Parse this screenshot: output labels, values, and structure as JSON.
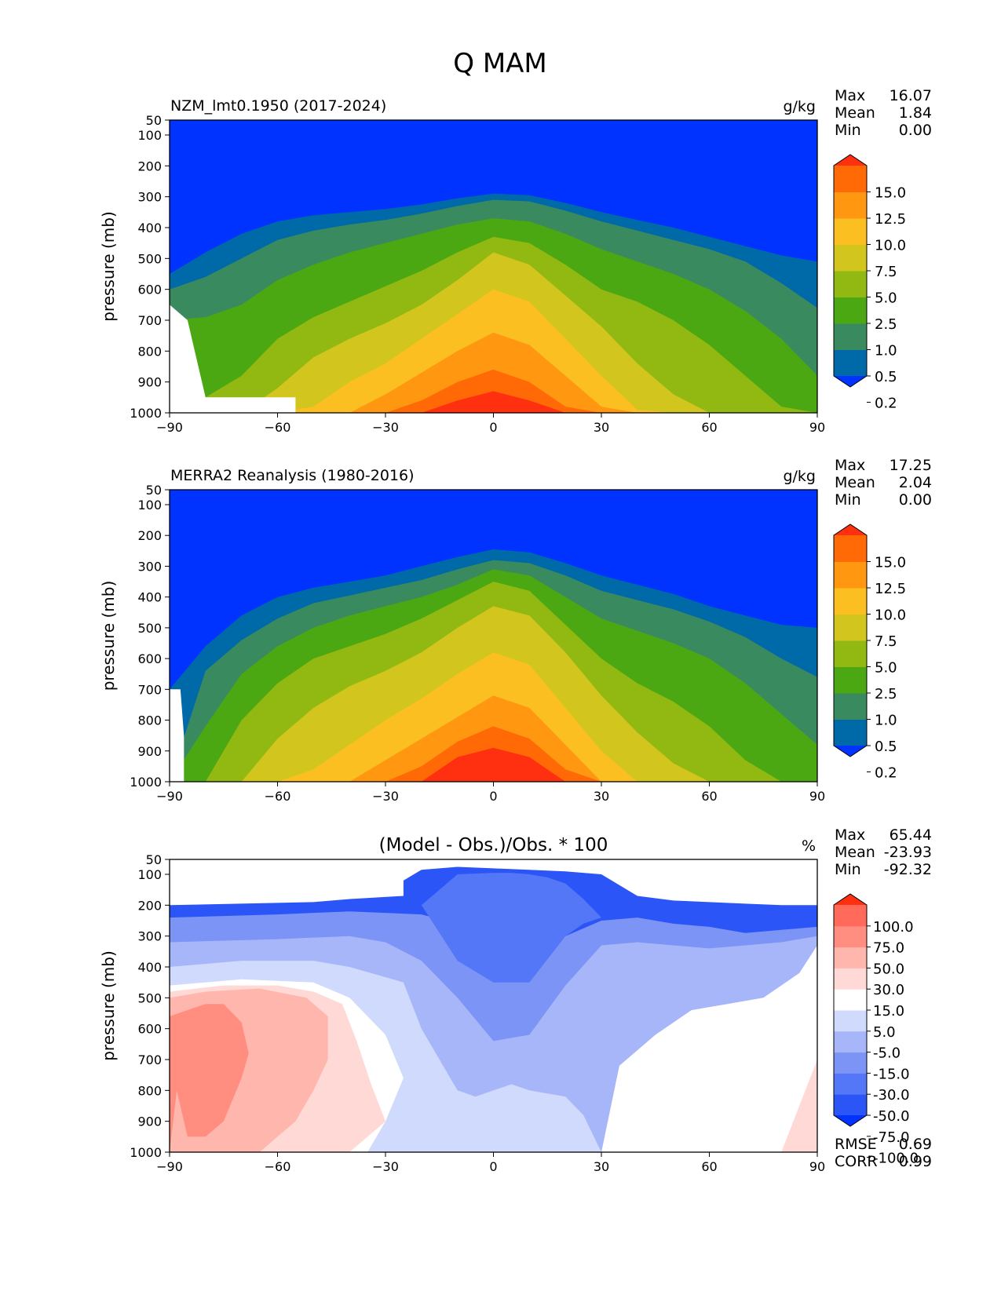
{
  "title": "Q MAM",
  "colors": {
    "q_levels": [
      "#0033ff",
      "#006aa8",
      "#3a8a60",
      "#4ca812",
      "#92b812",
      "#d2c61e",
      "#fbbf21",
      "#ff9810",
      "#ff6a06",
      "#ff3010"
    ],
    "diff_levels": [
      "#0033ff",
      "#2b55f7",
      "#5477f7",
      "#7b94f5",
      "#a7b6f8",
      "#d0dafc",
      "#ffffff",
      "#ffd9d6",
      "#ffb6ad",
      "#ff8e80",
      "#ff6a5a",
      "#ff3010"
    ]
  },
  "chart_data": [
    {
      "type": "contour",
      "title": "NZM_lmt0.1950 (2017-2024)",
      "units": "g/kg",
      "ylabel": "pressure (mb)",
      "xlim": [
        -90,
        90
      ],
      "ylim": [
        1000,
        50
      ],
      "xticks": [
        "−90",
        "−60",
        "−30",
        "0",
        "30",
        "60",
        "90"
      ],
      "yticks": [
        "50",
        "100",
        "200",
        "300",
        "400",
        "500",
        "600",
        "700",
        "800",
        "900",
        "1000"
      ],
      "stats": {
        "labels": [
          "Max",
          "Mean",
          "Min"
        ],
        "values": [
          "16.07",
          "1.84",
          "0.00"
        ]
      },
      "colorbar_labels": [
        "15.0",
        "12.5",
        "10.0",
        "7.5",
        "5.0",
        "2.5",
        "1.0",
        "0.5",
        "0.2"
      ],
      "field": "model",
      "contours": {
        "lat": [
          -90,
          -80,
          -70,
          -60,
          -50,
          -40,
          -30,
          -20,
          -10,
          0,
          10,
          20,
          30,
          40,
          50,
          60,
          70,
          80,
          90
        ],
        "levels_lowest_contour": [
          [
            550,
            480,
            420,
            380,
            360,
            350,
            340,
            325,
            305,
            290,
            295,
            320,
            350,
            375,
            400,
            430,
            460,
            490,
            510
          ],
          [
            600,
            560,
            500,
            440,
            410,
            390,
            375,
            355,
            330,
            310,
            315,
            345,
            380,
            410,
            440,
            470,
            510,
            580,
            660
          ],
          [
            700,
            690,
            650,
            570,
            520,
            480,
            450,
            420,
            390,
            370,
            380,
            420,
            470,
            510,
            550,
            600,
            670,
            760,
            880
          ],
          [
            1000,
            950,
            880,
            760,
            690,
            640,
            590,
            540,
            480,
            430,
            450,
            520,
            600,
            640,
            700,
            780,
            880,
            980,
            1000
          ],
          [
            1000,
            1000,
            1000,
            920,
            820,
            760,
            710,
            650,
            570,
            480,
            520,
            620,
            720,
            840,
            940,
            1000,
            1000,
            1000,
            1000
          ],
          [
            1000,
            1000,
            1000,
            1000,
            980,
            900,
            840,
            760,
            680,
            600,
            640,
            760,
            880,
            990,
            1000,
            1000,
            1000,
            1000,
            1000
          ],
          [
            1000,
            1000,
            1000,
            1000,
            1000,
            1000,
            940,
            870,
            800,
            740,
            780,
            880,
            980,
            1000,
            1000,
            1000,
            1000,
            1000,
            1000
          ],
          [
            1000,
            1000,
            1000,
            1000,
            1000,
            1000,
            1000,
            960,
            900,
            860,
            900,
            980,
            1000,
            1000,
            1000,
            1000,
            1000,
            1000,
            1000
          ],
          [
            1000,
            1000,
            1000,
            1000,
            1000,
            1000,
            1000,
            1000,
            960,
            930,
            960,
            1000,
            1000,
            1000,
            1000,
            1000,
            1000,
            1000,
            1000
          ]
        ],
        "missing": {
          "lat": [
            -90,
            -85,
            -80,
            -70,
            -55,
            -55
          ],
          "p": [
            650,
            700,
            950,
            950,
            950,
            1000
          ]
        }
      }
    },
    {
      "type": "contour",
      "title": "MERRA2 Reanalysis (1980-2016)",
      "units": "g/kg",
      "ylabel": "pressure (mb)",
      "xlim": [
        -90,
        90
      ],
      "ylim": [
        1000,
        50
      ],
      "xticks": [
        "−90",
        "−60",
        "−30",
        "0",
        "30",
        "60",
        "90"
      ],
      "yticks": [
        "50",
        "100",
        "200",
        "300",
        "400",
        "500",
        "600",
        "700",
        "800",
        "900",
        "1000"
      ],
      "stats": {
        "labels": [
          "Max",
          "Mean",
          "Min"
        ],
        "values": [
          "17.25",
          "2.04",
          "0.00"
        ]
      },
      "colorbar_labels": [
        "15.0",
        "12.5",
        "10.0",
        "7.5",
        "5.0",
        "2.5",
        "1.0",
        "0.5",
        "0.2"
      ],
      "field": "obs",
      "contours": {
        "lat": [
          -90,
          -80,
          -70,
          -60,
          -50,
          -40,
          -30,
          -20,
          -10,
          0,
          10,
          20,
          30,
          40,
          50,
          60,
          70,
          80,
          90
        ],
        "levels_lowest_contour": [
          [
            700,
            560,
            460,
            400,
            370,
            350,
            330,
            300,
            270,
            245,
            255,
            290,
            330,
            360,
            390,
            430,
            460,
            490,
            500
          ],
          [
            1000,
            640,
            540,
            470,
            420,
            395,
            370,
            345,
            310,
            280,
            290,
            330,
            380,
            410,
            440,
            480,
            530,
            600,
            660
          ],
          [
            1000,
            820,
            650,
            560,
            500,
            460,
            430,
            400,
            360,
            310,
            330,
            400,
            470,
            510,
            550,
            600,
            680,
            780,
            880
          ],
          [
            1000,
            1000,
            800,
            680,
            600,
            560,
            520,
            470,
            410,
            350,
            380,
            490,
            600,
            680,
            740,
            820,
            930,
            1000,
            1000
          ],
          [
            1000,
            1000,
            1000,
            860,
            760,
            690,
            640,
            580,
            500,
            430,
            460,
            580,
            720,
            840,
            940,
            1000,
            1000,
            1000,
            1000
          ],
          [
            1000,
            1000,
            1000,
            1000,
            960,
            880,
            800,
            730,
            650,
            580,
            620,
            760,
            900,
            1000,
            1000,
            1000,
            1000,
            1000,
            1000
          ],
          [
            1000,
            1000,
            1000,
            1000,
            1000,
            1000,
            930,
            860,
            790,
            720,
            760,
            880,
            1000,
            1000,
            1000,
            1000,
            1000,
            1000,
            1000
          ],
          [
            1000,
            1000,
            1000,
            1000,
            1000,
            1000,
            1000,
            950,
            870,
            820,
            860,
            960,
            1000,
            1000,
            1000,
            1000,
            1000,
            1000,
            1000
          ],
          [
            1000,
            1000,
            1000,
            1000,
            1000,
            1000,
            1000,
            1000,
            920,
            890,
            920,
            1000,
            1000,
            1000,
            1000,
            1000,
            1000,
            1000,
            1000
          ]
        ],
        "missing": {
          "lat": [
            -90,
            -87,
            -86,
            -86
          ],
          "p": [
            700,
            700,
            850,
            1000
          ]
        }
      }
    },
    {
      "type": "contour",
      "title": "(Model - Obs.)/Obs. * 100",
      "units": "%",
      "ylabel": "pressure (mb)",
      "xlim": [
        -90,
        90
      ],
      "ylim": [
        1000,
        50
      ],
      "xticks": [
        "−90",
        "−60",
        "−30",
        "0",
        "30",
        "60",
        "90"
      ],
      "yticks": [
        "50",
        "100",
        "200",
        "300",
        "400",
        "500",
        "600",
        "700",
        "800",
        "900",
        "1000"
      ],
      "stats": {
        "labels": [
          "Max",
          "Mean",
          "Min"
        ],
        "values": [
          "65.44",
          "-23.93",
          "-92.32"
        ]
      },
      "extra_stats": {
        "labels": [
          "RMSE",
          "CORR"
        ],
        "values": [
          "0.69",
          "0.99"
        ]
      },
      "colorbar_labels": [
        "100.0",
        "75.0",
        "50.0",
        "30.0",
        "15.0",
        "5.0",
        "-5.0",
        "-15.0",
        "-30.0",
        "-50.0",
        "-75.0",
        "-100.0"
      ],
      "field": "diff",
      "regions": [
        {
          "level": 1,
          "lat": [
            -90,
            -90,
            -50,
            -40,
            -25,
            -25,
            -20,
            -10,
            0,
            10,
            20,
            30,
            40,
            50,
            60,
            70,
            80,
            90,
            90
          ],
          "p": [
            1000,
            200,
            190,
            180,
            170,
            120,
            85,
            75,
            80,
            85,
            90,
            100,
            170,
            185,
            190,
            195,
            200,
            200,
            1000
          ]
        },
        {
          "level": 3,
          "lat": [
            -90,
            -90,
            -60,
            -40,
            -20,
            -10,
            0,
            10,
            20,
            30,
            40,
            50,
            60,
            70,
            80,
            90,
            90
          ],
          "p": [
            1000,
            240,
            230,
            220,
            230,
            260,
            300,
            340,
            300,
            250,
            240,
            260,
            270,
            290,
            280,
            270,
            1000
          ]
        },
        {
          "level": 2,
          "lat": [
            -10,
            0,
            5,
            10,
            15,
            20,
            25,
            30,
            25,
            20,
            10,
            0,
            -10,
            -20
          ],
          "p": [
            100,
            95,
            95,
            100,
            110,
            130,
            180,
            240,
            260,
            300,
            450,
            450,
            380,
            200
          ]
        },
        {
          "level": 4,
          "lat": [
            -90,
            -90,
            -60,
            -40,
            -30,
            -20,
            -10,
            0,
            10,
            20,
            30,
            40,
            50,
            60,
            70,
            80,
            90,
            90
          ],
          "p": [
            1000,
            320,
            310,
            300,
            320,
            380,
            500,
            640,
            620,
            460,
            330,
            320,
            330,
            340,
            330,
            320,
            300,
            1000
          ]
        },
        {
          "level": 5,
          "lat": [
            -90,
            -90,
            -70,
            -50,
            -40,
            -25,
            -20,
            -10,
            -5,
            0,
            5,
            10,
            20,
            25,
            30,
            40,
            50,
            60,
            70,
            80,
            90,
            90
          ],
          "p": [
            1000,
            400,
            380,
            380,
            400,
            450,
            600,
            800,
            820,
            800,
            780,
            800,
            820,
            880,
            1000,
            1000,
            1000,
            1000,
            1000,
            1000,
            1000,
            1000
          ]
        },
        {
          "level": 6,
          "lat": [
            -90,
            -90,
            -70,
            -50,
            -40,
            -30,
            -25,
            -30,
            -35,
            -30
          ],
          "p": [
            1000,
            460,
            440,
            450,
            500,
            620,
            760,
            900,
            1000,
            1000
          ]
        },
        {
          "level": 6,
          "lat": [
            30,
            35,
            45,
            55,
            65,
            75,
            85,
            90,
            90,
            85,
            80,
            75,
            65
          ],
          "p": [
            1000,
            720,
            620,
            540,
            520,
            500,
            420,
            330,
            1000,
            1000,
            1000,
            1000,
            1000
          ]
        },
        {
          "level": 7,
          "lat": [
            -90,
            -90,
            -75,
            -60,
            -50,
            -42,
            -38,
            -34,
            -30,
            -40,
            -50,
            -60
          ],
          "p": [
            1000,
            480,
            460,
            460,
            480,
            520,
            640,
            780,
            900,
            1000,
            1000,
            1000
          ]
        },
        {
          "level": 7,
          "lat": [
            80,
            90,
            90,
            80
          ],
          "p": [
            1000,
            700,
            1000,
            1000
          ]
        },
        {
          "level": 8,
          "lat": [
            -90,
            -90,
            -80,
            -65,
            -52,
            -46,
            -46,
            -50,
            -55,
            -60,
            -65,
            -75,
            -85
          ],
          "p": [
            1000,
            500,
            480,
            470,
            500,
            560,
            700,
            800,
            900,
            950,
            1000,
            1000,
            1000
          ]
        },
        {
          "level": 9,
          "lat": [
            -90,
            -90,
            -80,
            -75,
            -70,
            -68,
            -70,
            -75,
            -80,
            -85,
            -86,
            -88
          ],
          "p": [
            1000,
            560,
            520,
            520,
            580,
            680,
            760,
            900,
            950,
            950,
            900,
            800
          ]
        }
      ]
    }
  ]
}
